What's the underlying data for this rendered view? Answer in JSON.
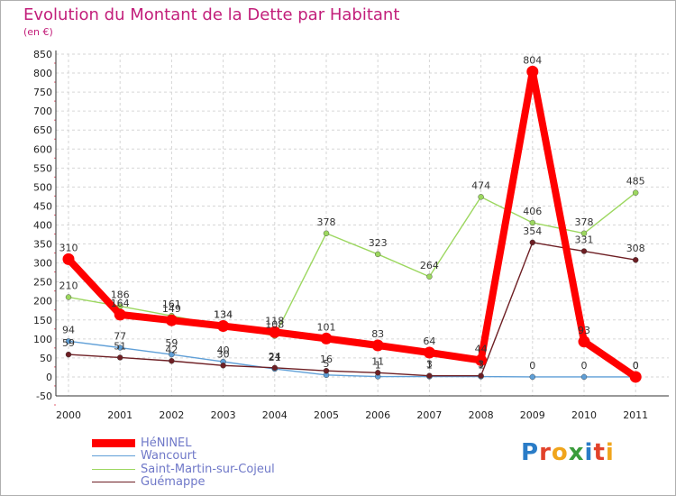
{
  "title": "Evolution du Montant de la Dette par Habitant",
  "unit_label": "(en €)",
  "logo": {
    "text": "Proxiti",
    "colors": [
      "#2a7cc7",
      "#e2422a",
      "#f0a51c",
      "#3a9c3c",
      "#2a7cc7",
      "#e2422a",
      "#f0a51c"
    ]
  },
  "chart_data": {
    "type": "line",
    "title": "Evolution du Montant de la Dette par Habitant",
    "ylabel": "(en €)",
    "x": [
      "2000",
      "2001",
      "2002",
      "2003",
      "2004",
      "2005",
      "2006",
      "2007",
      "2008",
      "2009",
      "2010",
      "2011"
    ],
    "ylim": [
      -50,
      850
    ],
    "yticks": [
      -50,
      0,
      50,
      100,
      150,
      200,
      250,
      300,
      350,
      400,
      450,
      500,
      550,
      600,
      650,
      700,
      750,
      800,
      850
    ],
    "grid": true,
    "legend_position": "bottom-left",
    "series": [
      {
        "name": "HéNINEL",
        "color": "#ff0000",
        "values": [
          310,
          164,
          149,
          134,
          118,
          101,
          83,
          64,
          44,
          804,
          93,
          0
        ]
      },
      {
        "name": "Wancourt",
        "color": "#5f9fd7",
        "values": [
          94,
          77,
          59,
          40,
          21,
          5,
          1,
          1,
          1,
          0,
          0,
          0
        ]
      },
      {
        "name": "Saint-Martin-sur-Cojeul",
        "color": "#9cd75f",
        "values": [
          210,
          186,
          161,
          134,
          108,
          378,
          323,
          264,
          474,
          406,
          378,
          485
        ]
      },
      {
        "name": "Guémappe",
        "color": "#6e1f24",
        "values": [
          59,
          51,
          42,
          30,
          24,
          16,
          11,
          3,
          3,
          354,
          331,
          308
        ]
      }
    ]
  }
}
